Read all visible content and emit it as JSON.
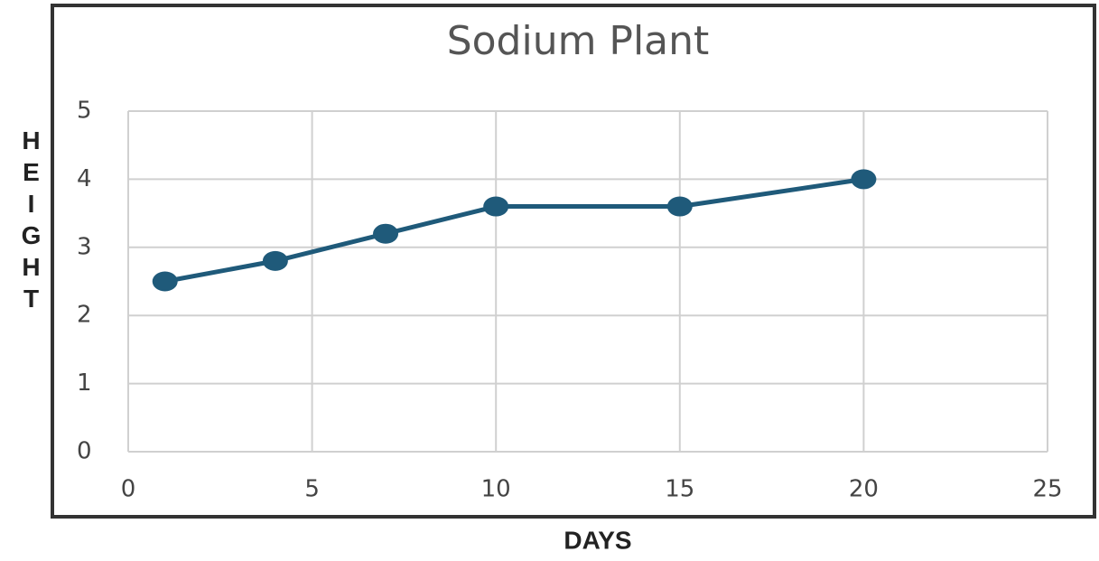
{
  "chart_data": {
    "type": "line",
    "title": "Sodium Plant",
    "x_label": "DAYS",
    "y_label": "HEIGHT",
    "x": [
      1,
      4,
      7,
      10,
      15,
      20
    ],
    "series": [
      {
        "name": "Height",
        "color": "#1f5a7a",
        "values": [
          2.5,
          2.8,
          3.2,
          3.6,
          3.6,
          4
        ]
      }
    ],
    "xlim": [
      0,
      25
    ],
    "xticks": [
      0,
      5,
      10,
      15,
      20,
      25
    ],
    "ylim": [
      0,
      5
    ],
    "yticks": [
      0,
      1,
      2,
      3,
      4,
      5
    ],
    "grid": true
  }
}
